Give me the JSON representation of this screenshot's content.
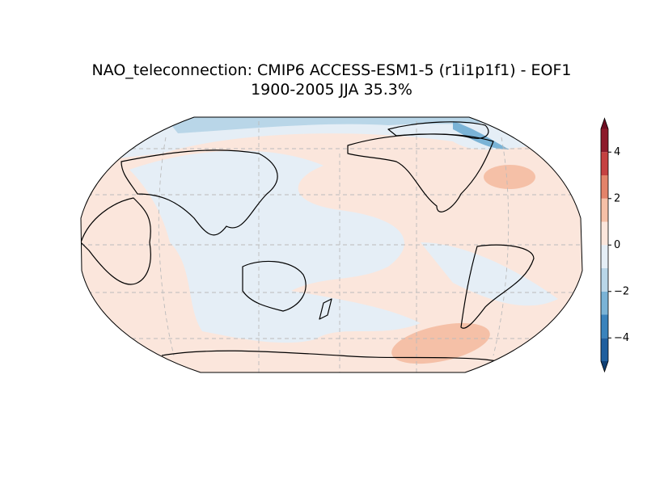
{
  "title": "NAO_teleconnection: CMIP6 ACCESS-ESM1-5 (r1i1p1f1) - EOF1",
  "subtitle": "1900-2005 JJA 35.3%",
  "colorbar": {
    "lim": [
      -5,
      5
    ],
    "levels": [
      -5,
      -4,
      -3,
      -2,
      -1,
      0,
      1,
      2,
      3,
      4,
      5
    ],
    "colors": [
      "#1f5f9e",
      "#3a83bc",
      "#7ab3d6",
      "#b9d6e8",
      "#e5eef6",
      "#fbe6dc",
      "#f5c0a7",
      "#e3836a",
      "#c54141",
      "#8d1a2b"
    ],
    "extend_colors": [
      "#0f3f73",
      "#6d0d22"
    ],
    "ticks": [
      {
        "value": -4,
        "label": "−4"
      },
      {
        "value": -2,
        "label": "−2"
      },
      0,
      2,
      4
    ]
  }
}
